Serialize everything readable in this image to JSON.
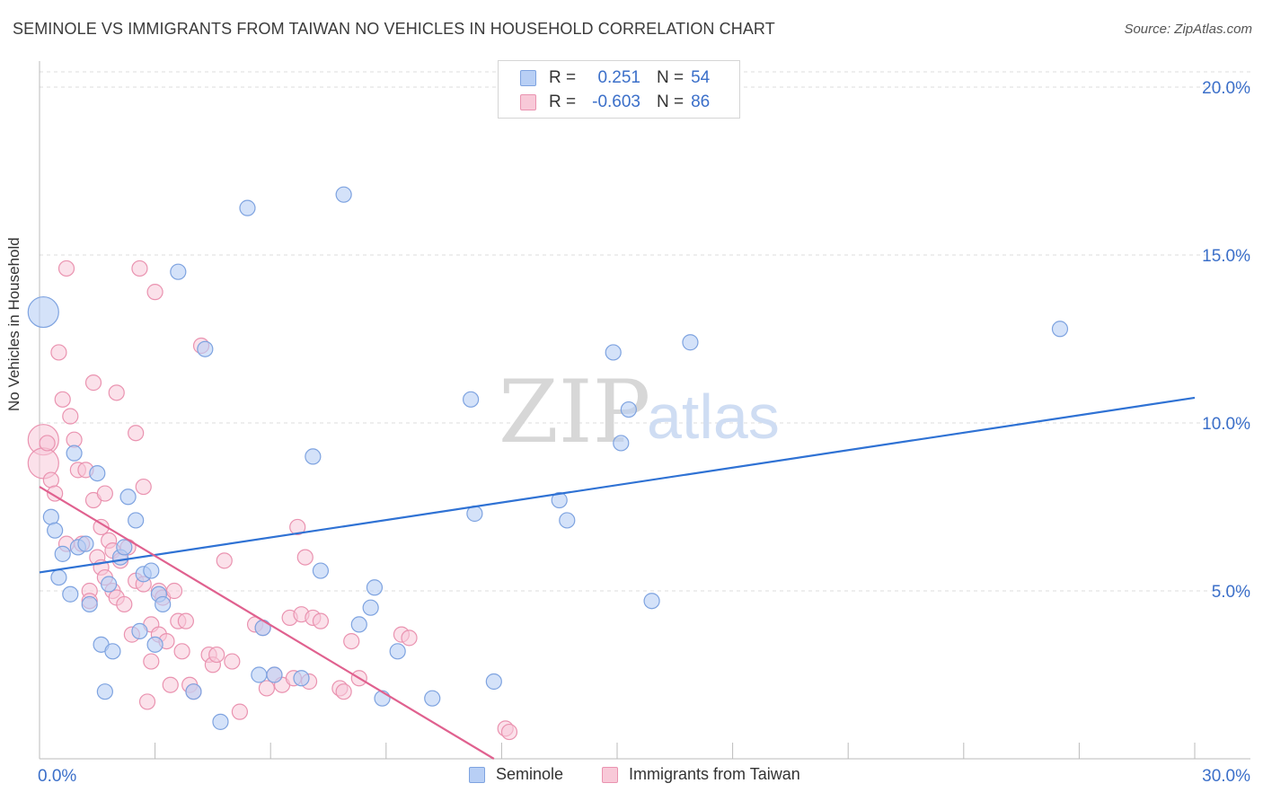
{
  "title": "SEMINOLE VS IMMIGRANTS FROM TAIWAN NO VEHICLES IN HOUSEHOLD CORRELATION CHART",
  "source": "Source: ZipAtlas.com",
  "watermark": {
    "zip": "ZIP",
    "atlas": "atlas"
  },
  "legend": {
    "rows": [
      {
        "r_label": "R =",
        "r_value": "0.251",
        "n_label": "N =",
        "n_value": "54"
      },
      {
        "r_label": "R =",
        "r_value": "-0.603",
        "n_label": "N =",
        "n_value": "86"
      }
    ]
  },
  "bottom_legend": {
    "series1": "Seminole",
    "series2": "Immigrants from Taiwan"
  },
  "colors": {
    "seminole_fill": "#b8cff5",
    "seminole_stroke": "#7ea3e0",
    "seminole_line": "#2f72d4",
    "taiwan_fill": "#f8c9d8",
    "taiwan_stroke": "#ea93b0",
    "taiwan_line": "#e0618f",
    "axis_label": "#3b6fc9",
    "grid": "#dddddd"
  },
  "chart_data": {
    "type": "scatter",
    "title": "SEMINOLE VS IMMIGRANTS FROM TAIWAN NO VEHICLES IN HOUSEHOLD CORRELATION CHART",
    "xlabel": "",
    "ylabel": "No Vehicles in Household",
    "xlim": [
      0,
      30
    ],
    "ylim": [
      0,
      20
    ],
    "x_tick_labels": [
      "0.0%",
      "30.0%"
    ],
    "y_ticks": [
      5,
      10,
      15,
      20
    ],
    "y_tick_labels": [
      "5.0%",
      "10.0%",
      "15.0%",
      "20.0%"
    ],
    "grid": true,
    "legend_position": "top-center",
    "series": [
      {
        "name": "Seminole",
        "r": 0.251,
        "n": 54,
        "trend": {
          "x": [
            0,
            30
          ],
          "y": [
            5.55,
            10.75
          ]
        },
        "points": [
          [
            0.1,
            13.3,
            2
          ],
          [
            0.3,
            7.2,
            1
          ],
          [
            0.4,
            6.8,
            1
          ],
          [
            0.5,
            5.4,
            1
          ],
          [
            0.6,
            6.1,
            1
          ],
          [
            0.8,
            4.9,
            1
          ],
          [
            0.9,
            9.1,
            1
          ],
          [
            1.0,
            6.3,
            1
          ],
          [
            1.2,
            6.4,
            1
          ],
          [
            1.3,
            4.6,
            1
          ],
          [
            1.5,
            8.5,
            1
          ],
          [
            1.6,
            3.4,
            1
          ],
          [
            1.7,
            2.0,
            1
          ],
          [
            1.8,
            5.2,
            1
          ],
          [
            1.9,
            3.2,
            1
          ],
          [
            2.1,
            6.0,
            1
          ],
          [
            2.2,
            6.3,
            1
          ],
          [
            2.3,
            7.8,
            1
          ],
          [
            2.5,
            7.1,
            1
          ],
          [
            2.6,
            3.8,
            1
          ],
          [
            2.7,
            5.5,
            1
          ],
          [
            2.9,
            5.6,
            1
          ],
          [
            3.0,
            3.4,
            1
          ],
          [
            3.1,
            4.9,
            1
          ],
          [
            3.2,
            4.6,
            1
          ],
          [
            3.6,
            14.5,
            1
          ],
          [
            4.0,
            2.0,
            1
          ],
          [
            4.3,
            12.2,
            1
          ],
          [
            4.7,
            1.1,
            1
          ],
          [
            5.4,
            16.4,
            1
          ],
          [
            5.7,
            2.5,
            1
          ],
          [
            5.8,
            3.9,
            1
          ],
          [
            6.1,
            2.5,
            1
          ],
          [
            6.8,
            2.4,
            1
          ],
          [
            7.1,
            9.0,
            1
          ],
          [
            7.3,
            5.6,
            1
          ],
          [
            7.9,
            16.8,
            1
          ],
          [
            8.3,
            4.0,
            1
          ],
          [
            8.6,
            4.5,
            1
          ],
          [
            8.7,
            5.1,
            1
          ],
          [
            8.9,
            1.8,
            1
          ],
          [
            9.3,
            3.2,
            1
          ],
          [
            10.2,
            1.8,
            1
          ],
          [
            11.2,
            10.7,
            1
          ],
          [
            11.3,
            7.3,
            1
          ],
          [
            11.8,
            2.3,
            1
          ],
          [
            13.5,
            7.7,
            1
          ],
          [
            13.7,
            7.1,
            1
          ],
          [
            14.9,
            12.1,
            1
          ],
          [
            15.1,
            9.4,
            1
          ],
          [
            15.3,
            10.4,
            1
          ],
          [
            15.9,
            4.7,
            1
          ],
          [
            16.9,
            12.4,
            1
          ],
          [
            26.5,
            12.8,
            1
          ]
        ]
      },
      {
        "name": "Immigrants from Taiwan",
        "r": -0.603,
        "n": 86,
        "trend": {
          "x": [
            0,
            11.8
          ],
          "y": [
            8.1,
            0.0
          ]
        },
        "points": [
          [
            0.1,
            9.5,
            2
          ],
          [
            0.1,
            8.8,
            2
          ],
          [
            0.2,
            9.4,
            1
          ],
          [
            0.3,
            8.3,
            1
          ],
          [
            0.4,
            7.9,
            1
          ],
          [
            0.5,
            12.1,
            1
          ],
          [
            0.6,
            10.7,
            1
          ],
          [
            0.7,
            14.6,
            1
          ],
          [
            0.7,
            6.4,
            1
          ],
          [
            0.8,
            10.2,
            1
          ],
          [
            0.9,
            9.5,
            1
          ],
          [
            1.0,
            8.6,
            1
          ],
          [
            1.1,
            6.4,
            1
          ],
          [
            1.2,
            8.6,
            1
          ],
          [
            1.3,
            5.0,
            1
          ],
          [
            1.3,
            4.7,
            1
          ],
          [
            1.4,
            11.2,
            1
          ],
          [
            1.4,
            7.7,
            1
          ],
          [
            1.5,
            6.0,
            1
          ],
          [
            1.6,
            5.7,
            1
          ],
          [
            1.6,
            6.9,
            1
          ],
          [
            1.7,
            5.4,
            1
          ],
          [
            1.7,
            7.9,
            1
          ],
          [
            1.8,
            6.5,
            1
          ],
          [
            1.9,
            6.2,
            1
          ],
          [
            1.9,
            5.0,
            1
          ],
          [
            2.0,
            10.9,
            1
          ],
          [
            2.0,
            4.8,
            1
          ],
          [
            2.1,
            5.9,
            1
          ],
          [
            2.2,
            4.6,
            1
          ],
          [
            2.3,
            6.3,
            1
          ],
          [
            2.4,
            3.7,
            1
          ],
          [
            2.5,
            9.7,
            1
          ],
          [
            2.5,
            5.3,
            1
          ],
          [
            2.6,
            14.6,
            1
          ],
          [
            2.7,
            8.1,
            1
          ],
          [
            2.7,
            5.2,
            1
          ],
          [
            2.8,
            1.7,
            1
          ],
          [
            2.9,
            2.9,
            1
          ],
          [
            2.9,
            4.0,
            1
          ],
          [
            3.0,
            13.9,
            1
          ],
          [
            3.1,
            5.0,
            1
          ],
          [
            3.1,
            3.7,
            1
          ],
          [
            3.2,
            4.8,
            1
          ],
          [
            3.3,
            3.5,
            1
          ],
          [
            3.4,
            2.2,
            1
          ],
          [
            3.5,
            5.0,
            1
          ],
          [
            3.6,
            4.1,
            1
          ],
          [
            3.7,
            3.2,
            1
          ],
          [
            3.8,
            4.1,
            1
          ],
          [
            3.9,
            2.2,
            1
          ],
          [
            4.0,
            2.0,
            1
          ],
          [
            4.2,
            12.3,
            1
          ],
          [
            4.4,
            3.1,
            1
          ],
          [
            4.5,
            2.8,
            1
          ],
          [
            4.6,
            3.1,
            1
          ],
          [
            4.8,
            5.9,
            1
          ],
          [
            5.0,
            2.9,
            1
          ],
          [
            5.2,
            1.4,
            1
          ],
          [
            5.6,
            4.0,
            1
          ],
          [
            5.8,
            3.9,
            1
          ],
          [
            5.9,
            2.1,
            1
          ],
          [
            6.1,
            2.5,
            1
          ],
          [
            6.3,
            2.2,
            1
          ],
          [
            6.5,
            4.2,
            1
          ],
          [
            6.6,
            2.4,
            1
          ],
          [
            6.7,
            6.9,
            1
          ],
          [
            6.8,
            4.3,
            1
          ],
          [
            6.9,
            6.0,
            1
          ],
          [
            7.0,
            2.3,
            1
          ],
          [
            7.1,
            4.2,
            1
          ],
          [
            7.3,
            4.1,
            1
          ],
          [
            7.8,
            2.1,
            1
          ],
          [
            7.9,
            2.0,
            1
          ],
          [
            8.1,
            3.5,
            1
          ],
          [
            8.3,
            2.4,
            1
          ],
          [
            9.4,
            3.7,
            1
          ],
          [
            9.6,
            3.6,
            1
          ],
          [
            12.1,
            0.9,
            1
          ],
          [
            12.2,
            0.8,
            1
          ]
        ]
      }
    ]
  },
  "ylabel": "No Vehicles in Household"
}
